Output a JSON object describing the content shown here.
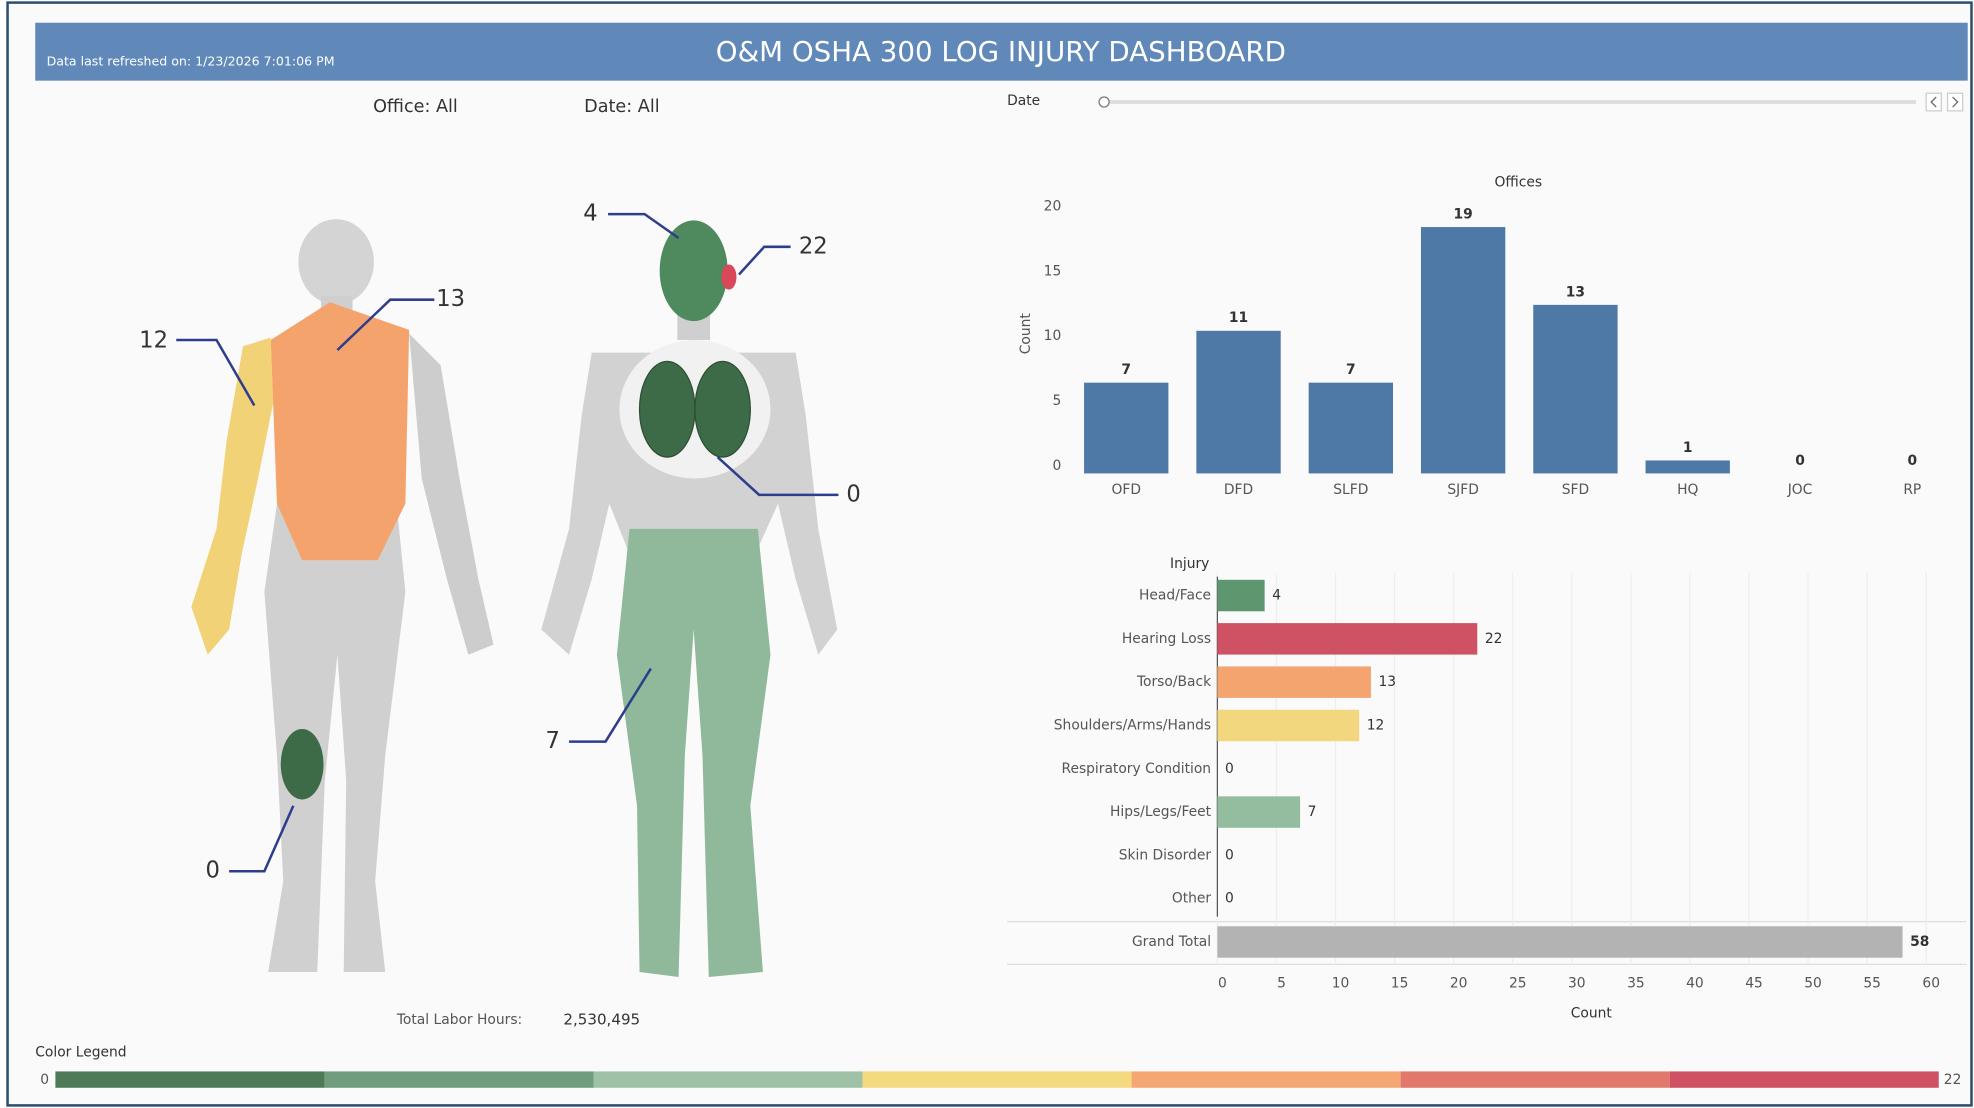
{
  "header": {
    "refreshed": "Data last refreshed on: 1/23/2026 7:01:06 PM",
    "title": "O&M OSHA 300 LOG INJURY DASHBOARD"
  },
  "filters": {
    "office": "Office: All",
    "date": "Date: All",
    "slider_label": "Date"
  },
  "body_map": {
    "back": [
      12,
      13,
      0
    ],
    "front": [
      4,
      22,
      0,
      7
    ]
  },
  "chart_data": [
    {
      "type": "bar",
      "title": "Offices",
      "y_label": "Count",
      "categories": [
        "OFD",
        "DFD",
        "SLFD",
        "SJFD",
        "SFD",
        "HQ",
        "JOC",
        "RP"
      ],
      "values": [
        7,
        11,
        7,
        19,
        13,
        1,
        0,
        0
      ],
      "color": "#4e79a7",
      "ylim": [
        0,
        20
      ],
      "yticks": [
        0,
        5,
        10,
        15,
        20
      ],
      "grid": false
    },
    {
      "type": "barh",
      "title": "Injury",
      "x_label": "Count",
      "categories": [
        "Head/Face",
        "Hearing Loss",
        "Torso/Back",
        "Shoulders/Arms/Hands",
        "Respiratory Condition",
        "Hips/Legs/Feet",
        "Skin Disorder",
        "Other",
        "Grand Total"
      ],
      "values": [
        4,
        22,
        13,
        12,
        0,
        7,
        0,
        0,
        58
      ],
      "colors": [
        "#5e9670",
        "#cf5164",
        "#f4a46f",
        "#f3d77f",
        "#3e6b47",
        "#93bd9e",
        "#3e6b47",
        "#3e6b47",
        "#b3b3b3"
      ],
      "xlim": [
        0,
        60
      ],
      "xticks": [
        0,
        5,
        10,
        15,
        20,
        25,
        30,
        35,
        40,
        45,
        50,
        55,
        60
      ],
      "grid": true
    }
  ],
  "labor_hours": {
    "label": "Total Labor Hours:",
    "value": "2,530,495"
  },
  "color_legend": {
    "title": "Color Legend",
    "min": 0,
    "max": 22,
    "colors": [
      "#4f7a58",
      "#6f9d7d",
      "#9fc2a6",
      "#f5d97e",
      "#f4a673",
      "#e2786b",
      "#cf5164"
    ]
  }
}
